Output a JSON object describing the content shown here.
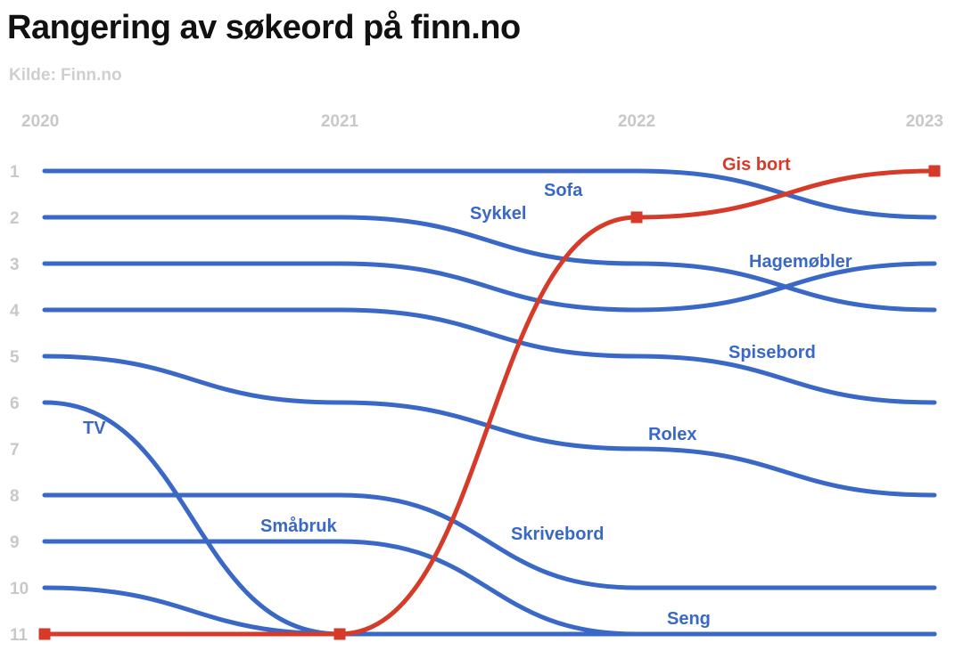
{
  "chart_data": {
    "type": "line",
    "title": "Rangering av søkeord på finn.no",
    "subtitle": "Kilde: Finn.no",
    "x": [
      "2020",
      "2021",
      "2022",
      "2023"
    ],
    "y_ticks": [
      "1",
      "2",
      "3",
      "4",
      "5",
      "6",
      "7",
      "8",
      "9",
      "10",
      "11"
    ],
    "y_inverted": true,
    "ylim": [
      1,
      11
    ],
    "colors": {
      "highlight": "#d63a28",
      "default": "#3a68c6"
    },
    "series": [
      {
        "name": "Sofa",
        "values": [
          1,
          1,
          1,
          2
        ],
        "highlight": false
      },
      {
        "name": "Sykkel",
        "values": [
          2,
          2,
          3,
          4
        ],
        "highlight": false
      },
      {
        "name": "Hagemøbler",
        "values": [
          3,
          3,
          4,
          3
        ],
        "highlight": false
      },
      {
        "name": "Spisebord",
        "values": [
          4,
          4,
          5,
          6
        ],
        "highlight": false
      },
      {
        "name": "Rolex",
        "values": [
          5,
          6,
          7,
          8
        ],
        "highlight": false
      },
      {
        "name": "TV",
        "values": [
          6,
          11,
          11,
          11
        ],
        "highlight": false
      },
      {
        "name": "Skrivebord",
        "values": [
          8,
          8,
          10,
          10
        ],
        "highlight": false
      },
      {
        "name": "Småbruk",
        "values": [
          9,
          9,
          11,
          11
        ],
        "highlight": false
      },
      {
        "name": "Seng",
        "values": [
          10,
          11,
          11,
          11
        ],
        "highlight": false
      },
      {
        "name": "Gis bort",
        "values": [
          11,
          11,
          2,
          1
        ],
        "highlight": true
      }
    ]
  }
}
